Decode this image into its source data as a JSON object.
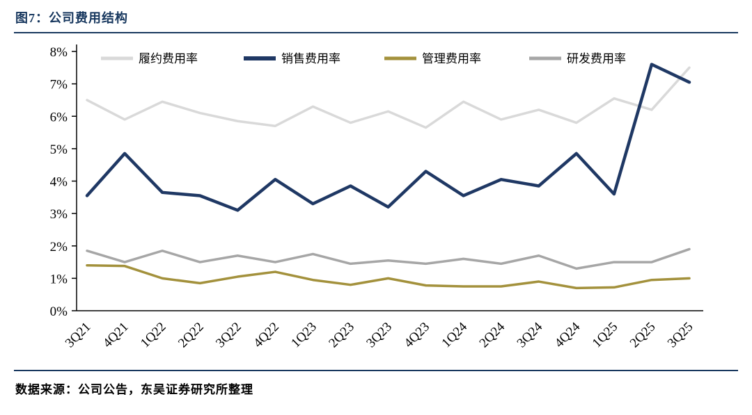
{
  "header": {
    "title": "图7：公司费用结构"
  },
  "footer": {
    "source": "数据来源：公司公告，东吴证券研究所整理"
  },
  "colors": {
    "accent_navy": "#17375e",
    "axis": "#000000"
  },
  "chart_data": {
    "type": "line",
    "title": "公司费用结构",
    "categories": [
      "3Q21",
      "4Q21",
      "1Q22",
      "2Q22",
      "3Q22",
      "4Q22",
      "1Q23",
      "2Q23",
      "3Q23",
      "4Q23",
      "1Q24",
      "2Q24",
      "3Q24",
      "4Q24",
      "1Q25",
      "2Q25",
      "3Q25"
    ],
    "series": [
      {
        "name": "履约费用率",
        "color": "#d9d9d9",
        "width": 3.5,
        "values": [
          6.5,
          5.9,
          6.45,
          6.1,
          5.85,
          5.7,
          6.3,
          5.8,
          6.15,
          5.65,
          6.45,
          5.9,
          6.2,
          5.8,
          6.55,
          6.2,
          7.5
        ]
      },
      {
        "name": "销售费用率",
        "color": "#1f3864",
        "width": 4.5,
        "values": [
          3.55,
          4.85,
          3.65,
          3.55,
          3.1,
          4.05,
          3.3,
          3.85,
          3.2,
          4.3,
          3.55,
          4.05,
          3.85,
          4.85,
          3.6,
          7.6,
          7.05
        ]
      },
      {
        "name": "管理费用率",
        "color": "#a3913c",
        "width": 3.5,
        "values": [
          1.4,
          1.38,
          1.0,
          0.85,
          1.05,
          1.2,
          0.95,
          0.8,
          1.0,
          0.78,
          0.75,
          0.75,
          0.9,
          0.7,
          0.72,
          0.95,
          1.0
        ]
      },
      {
        "name": "研发费用率",
        "color": "#a6a6a6",
        "width": 3.5,
        "values": [
          1.85,
          1.5,
          1.85,
          1.5,
          1.7,
          1.5,
          1.75,
          1.45,
          1.55,
          1.45,
          1.6,
          1.45,
          1.7,
          1.3,
          1.5,
          1.5,
          1.9
        ]
      }
    ],
    "xlabel": "",
    "ylabel": "",
    "ylim": [
      0,
      8
    ],
    "ytick_step": 1,
    "ytick_suffix": "%",
    "grid": false,
    "legend_position": "top-inside"
  }
}
